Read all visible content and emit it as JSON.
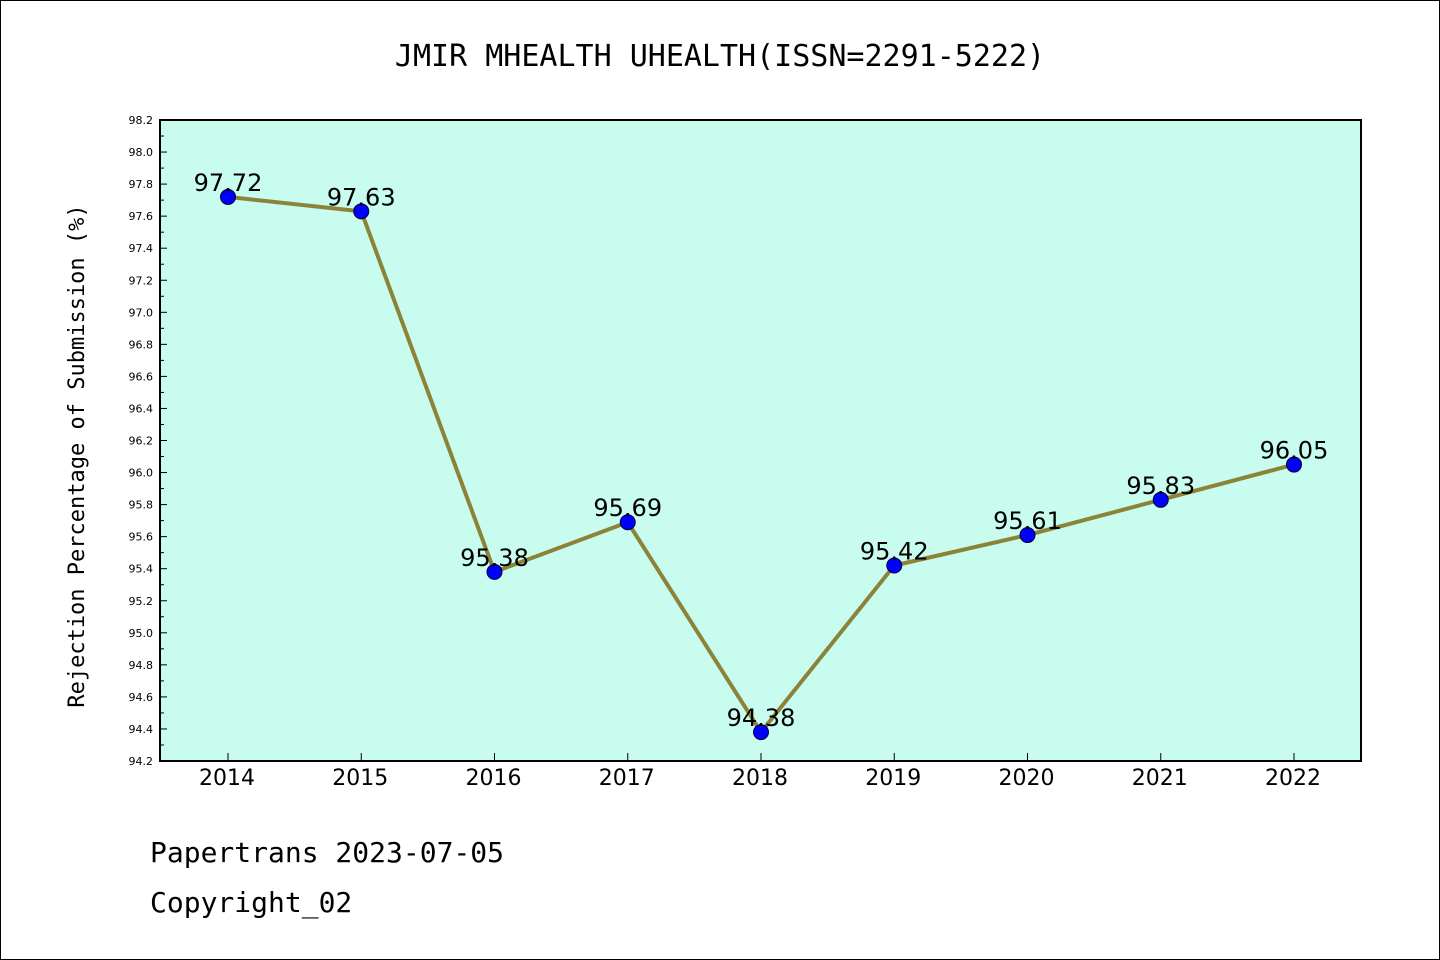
{
  "chart_data": {
    "type": "line",
    "title": "JMIR MHEALTH UHEALTH(ISSN=2291-5222)",
    "xlabel": "",
    "ylabel": "Rejection Percentage of Submission (%)",
    "categories": [
      "2014",
      "2015",
      "2016",
      "2017",
      "2018",
      "2019",
      "2020",
      "2021",
      "2022"
    ],
    "series": [
      {
        "values": [
          97.72,
          97.63,
          95.38,
          95.69,
          94.38,
          95.42,
          95.61,
          95.83,
          96.05
        ],
        "labels": [
          "97.72",
          "97.63",
          "95.38",
          "95.69",
          "94.38",
          "95.42",
          "95.61",
          "95.83",
          "96.05"
        ]
      }
    ],
    "ylim": [
      94.2,
      98.2
    ],
    "yticks": [
      "94.2",
      "94.4",
      "94.6",
      "94.8",
      "95.0",
      "95.2",
      "95.4",
      "95.6",
      "95.8",
      "96.0",
      "96.2",
      "96.4",
      "96.6",
      "96.8",
      "97.0",
      "97.2",
      "97.4",
      "97.6",
      "97.8",
      "98.0",
      "98.2"
    ],
    "grid": false,
    "colors": {
      "plot_background": "#c8fcee",
      "line": "#8b8438",
      "marker": "#0000ff",
      "axes": "#000000"
    }
  },
  "footer": {
    "line1": "Papertrans 2023-07-05",
    "line2": "Copyright_02"
  }
}
